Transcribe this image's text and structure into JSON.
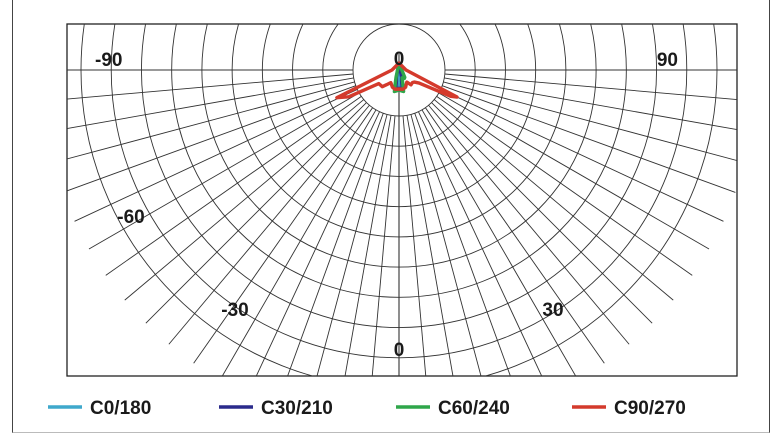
{
  "chart_data": {
    "type": "polar",
    "projection": "lower-half-polar",
    "angle_ticks": [
      {
        "label": "-90",
        "angle": -90
      },
      {
        "label": "90",
        "angle": 90
      },
      {
        "label": "-60",
        "angle": -60
      },
      {
        "label": "-30",
        "angle": -30
      },
      {
        "label": "30",
        "angle": 30
      },
      {
        "label": "0",
        "angle": 0
      },
      {
        "label": "0",
        "angle": 0,
        "position": "top"
      }
    ],
    "radial_rings": 9,
    "spoke_step_deg": 5,
    "series": [
      {
        "name": "C0/180",
        "color": "#3fa8cc",
        "points": [
          [
            -180,
            0.35
          ],
          [
            -13,
            0.38
          ],
          [
            -8,
            0.62
          ],
          [
            -6,
            0.9
          ],
          [
            -3,
            0.93
          ],
          [
            0,
            0.92
          ],
          [
            3,
            0.93
          ],
          [
            6,
            0.9
          ],
          [
            8,
            0.62
          ],
          [
            13,
            0.38
          ],
          [
            180,
            0.35
          ]
        ]
      },
      {
        "name": "C30/210",
        "color": "#2b2b8c",
        "points": [
          [
            -180,
            0.35
          ],
          [
            -20,
            0.38
          ],
          [
            -13,
            0.58
          ],
          [
            -10,
            0.98
          ],
          [
            -6,
            0.95
          ],
          [
            -4,
            0.92
          ],
          [
            4,
            0.92
          ],
          [
            6,
            0.95
          ],
          [
            10,
            0.98
          ],
          [
            13,
            0.58
          ],
          [
            20,
            0.38
          ],
          [
            180,
            0.35
          ]
        ]
      },
      {
        "name": "C60/240",
        "color": "#2fa64a",
        "points": [
          [
            -180,
            0.35
          ],
          [
            -22,
            0.4
          ],
          [
            -16,
            0.68
          ],
          [
            -12,
            1.1
          ],
          [
            -6,
            1.05
          ],
          [
            -3,
            1.0
          ],
          [
            3,
            1.0
          ],
          [
            6,
            1.05
          ],
          [
            12,
            1.1
          ],
          [
            16,
            0.68
          ],
          [
            22,
            0.42
          ],
          [
            33,
            0.5
          ],
          [
            38,
            0.47
          ],
          [
            180,
            0.35
          ]
        ]
      },
      {
        "name": "C90/270",
        "color": "#d43a2c",
        "points": [
          [
            -180,
            0.35
          ],
          [
            -90,
            0.35
          ],
          [
            -66,
            3.4
          ],
          [
            -62,
            2.85
          ],
          [
            -56,
            1.22
          ],
          [
            -45,
            1.18
          ],
          [
            -40,
            0.95
          ],
          [
            -33,
            0.75
          ],
          [
            -21,
            0.92
          ],
          [
            -12,
            0.98
          ],
          [
            0,
            0.95
          ],
          [
            12,
            0.98
          ],
          [
            21,
            0.92
          ],
          [
            33,
            0.72
          ],
          [
            39,
            0.95
          ],
          [
            47,
            0.92
          ],
          [
            52,
            0.98
          ],
          [
            57,
            1.2
          ],
          [
            63,
            2.9
          ],
          [
            65,
            3.2
          ],
          [
            90,
            0.35
          ],
          [
            180,
            0.35
          ]
        ]
      }
    ],
    "legend_position": "bottom"
  }
}
